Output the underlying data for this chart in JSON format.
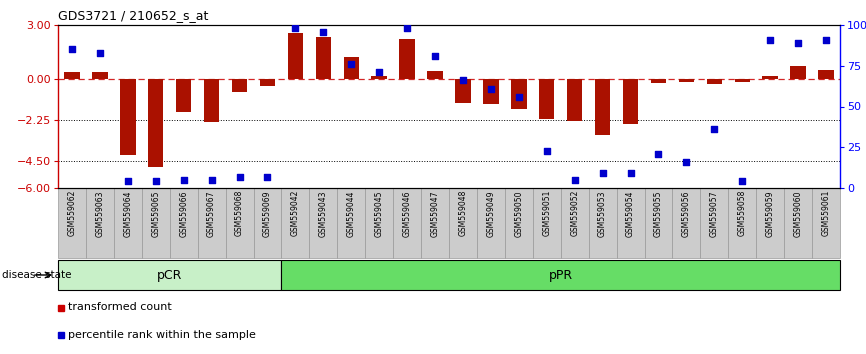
{
  "title": "GDS3721 / 210652_s_at",
  "samples": [
    "GSM559062",
    "GSM559063",
    "GSM559064",
    "GSM559065",
    "GSM559066",
    "GSM559067",
    "GSM559068",
    "GSM559069",
    "GSM559042",
    "GSM559043",
    "GSM559044",
    "GSM559045",
    "GSM559046",
    "GSM559047",
    "GSM559048",
    "GSM559049",
    "GSM559050",
    "GSM559051",
    "GSM559052",
    "GSM559053",
    "GSM559054",
    "GSM559055",
    "GSM559056",
    "GSM559057",
    "GSM559058",
    "GSM559059",
    "GSM559060",
    "GSM559061"
  ],
  "transformed_count": [
    0.38,
    0.38,
    -4.2,
    -4.85,
    -1.8,
    -2.35,
    -0.7,
    -0.35,
    2.55,
    2.35,
    1.25,
    0.18,
    2.25,
    0.45,
    -1.3,
    -1.35,
    -1.65,
    -2.2,
    -2.3,
    -3.05,
    -2.45,
    -0.18,
    -0.12,
    -0.28,
    -0.12,
    0.18,
    0.75,
    0.5
  ],
  "percentile_rank": [
    85,
    83,
    4,
    4,
    5,
    5,
    7,
    7,
    98,
    96,
    76,
    71,
    98,
    81,
    66,
    61,
    56,
    23,
    5,
    9,
    9,
    21,
    16,
    36,
    4,
    91,
    89,
    91
  ],
  "group_sizes": [
    8,
    20
  ],
  "group_labels": [
    "pCR",
    "pPR"
  ],
  "group_light_color": "#c8f0c8",
  "group_dark_color": "#66dd66",
  "ylim_left": [
    -6,
    3
  ],
  "ylim_right": [
    0,
    100
  ],
  "yticks_left": [
    3,
    0,
    -2.25,
    -4.5,
    -6
  ],
  "yticks_right": [
    100,
    75,
    50,
    25,
    0
  ],
  "hlines_dotted": [
    -2.25,
    -4.5
  ],
  "hline_dashed_red": 0.0,
  "bar_color": "#aa1100",
  "scatter_color": "#0000cc",
  "bar_width": 0.55,
  "xtick_bg_color": "#cccccc",
  "xtick_border_color": "#999999",
  "legend_labels": [
    "transformed count",
    "percentile rank within the sample"
  ],
  "legend_colors": [
    "#cc0000",
    "#0000cc"
  ],
  "disease_state_label": "disease state"
}
